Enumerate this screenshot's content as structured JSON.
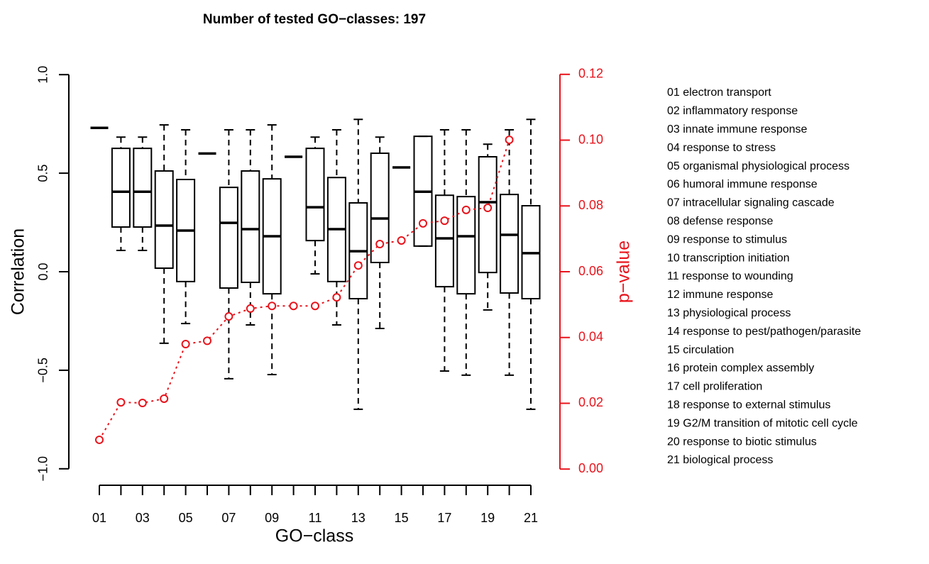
{
  "chart_data": {
    "type": "box",
    "title": "Number of tested GO−classes: 197",
    "x_label": "GO−class",
    "y_label": "Correlation",
    "y2_label": "p−value",
    "categories": [
      "01",
      null,
      "03",
      null,
      "05",
      null,
      "07",
      null,
      "09",
      null,
      "11",
      null,
      "13",
      null,
      "15",
      null,
      "17",
      null,
      "19",
      null,
      "21"
    ],
    "whisker_high": [
      0.73,
      0.683,
      0.683,
      0.745,
      0.72,
      0.6,
      0.72,
      0.72,
      0.745,
      0.583,
      0.683,
      0.72,
      0.773,
      0.683,
      0.529,
      0.687,
      0.72,
      0.72,
      0.647,
      0.72,
      0.773
    ],
    "q3": [
      0.73,
      0.626,
      0.626,
      0.511,
      0.468,
      0.6,
      0.428,
      0.511,
      0.471,
      0.583,
      0.626,
      0.478,
      0.349,
      0.601,
      0.529,
      0.687,
      0.388,
      0.381,
      0.583,
      0.392,
      0.335
    ],
    "median": [
      0.73,
      0.406,
      0.406,
      0.234,
      0.209,
      0.6,
      0.248,
      0.216,
      0.18,
      0.583,
      0.327,
      0.216,
      0.104,
      0.27,
      0.529,
      0.406,
      0.169,
      0.18,
      0.353,
      0.187,
      0.094
    ],
    "q1": [
      0.73,
      0.227,
      0.227,
      0.018,
      -0.05,
      0.6,
      -0.083,
      -0.054,
      -0.112,
      0.583,
      0.158,
      -0.05,
      -0.137,
      0.047,
      0.529,
      0.13,
      -0.076,
      -0.112,
      -0.004,
      -0.108,
      -0.137
    ],
    "whisker_low": [
      0.73,
      0.108,
      0.108,
      -0.363,
      -0.263,
      0.6,
      -0.543,
      -0.27,
      -0.522,
      0.583,
      -0.011,
      -0.27,
      -0.698,
      -0.288,
      0.529,
      0.13,
      -0.504,
      -0.525,
      -0.194,
      -0.525,
      -0.698
    ],
    "color": "#000000",
    "p_values": {
      "axis": "y2",
      "color": "#e8141c",
      "values": [
        0.0089,
        0.0203,
        0.0201,
        0.0214,
        0.038,
        0.039,
        0.0464,
        0.0488,
        0.0496,
        0.0496,
        0.0496,
        0.0522,
        0.0619,
        0.0684,
        0.0695,
        0.0747,
        0.0755,
        0.0788,
        0.0794,
        0.1001,
        null
      ]
    },
    "ylim": [
      -1.08,
      1.08
    ],
    "yticks": [
      {
        "value": -1,
        "label": "−1.0"
      },
      {
        "value": -0.5,
        "label": "−0.5"
      },
      {
        "value": 0,
        "label": "0.0"
      },
      {
        "value": 0.5,
        "label": "0.5"
      },
      {
        "value": 1,
        "label": "1.0"
      }
    ],
    "y2lim": [
      -0.0047,
      0.1247
    ],
    "y2ticks": [
      {
        "value": 0,
        "label": "0.00"
      },
      {
        "value": 0.02,
        "label": "0.02"
      },
      {
        "value": 0.04,
        "label": "0.04"
      },
      {
        "value": 0.06,
        "label": "0.06"
      },
      {
        "value": 0.08,
        "label": "0.08"
      },
      {
        "value": 0.1,
        "label": "0.10"
      },
      {
        "value": 0.12,
        "label": "0.12"
      }
    ],
    "legend_items": [
      "01 electron transport",
      "02 inflammatory response",
      "03 innate immune response",
      "04 response to stress",
      "05 organismal physiological process",
      "06 humoral immune response",
      "07 intracellular signaling cascade",
      "08 defense response",
      "09 response to stimulus",
      "10 transcription initiation",
      "11 response to wounding",
      "12 immune response",
      "13 physiological process",
      "14 response to pest/pathogen/parasite",
      "15 circulation",
      "16 protein complex assembly",
      "17 cell proliferation",
      "18 response to external stimulus",
      "19 G2/M transition of mitotic cell cycle",
      "20 response to biotic stimulus",
      "21 biological process"
    ]
  }
}
